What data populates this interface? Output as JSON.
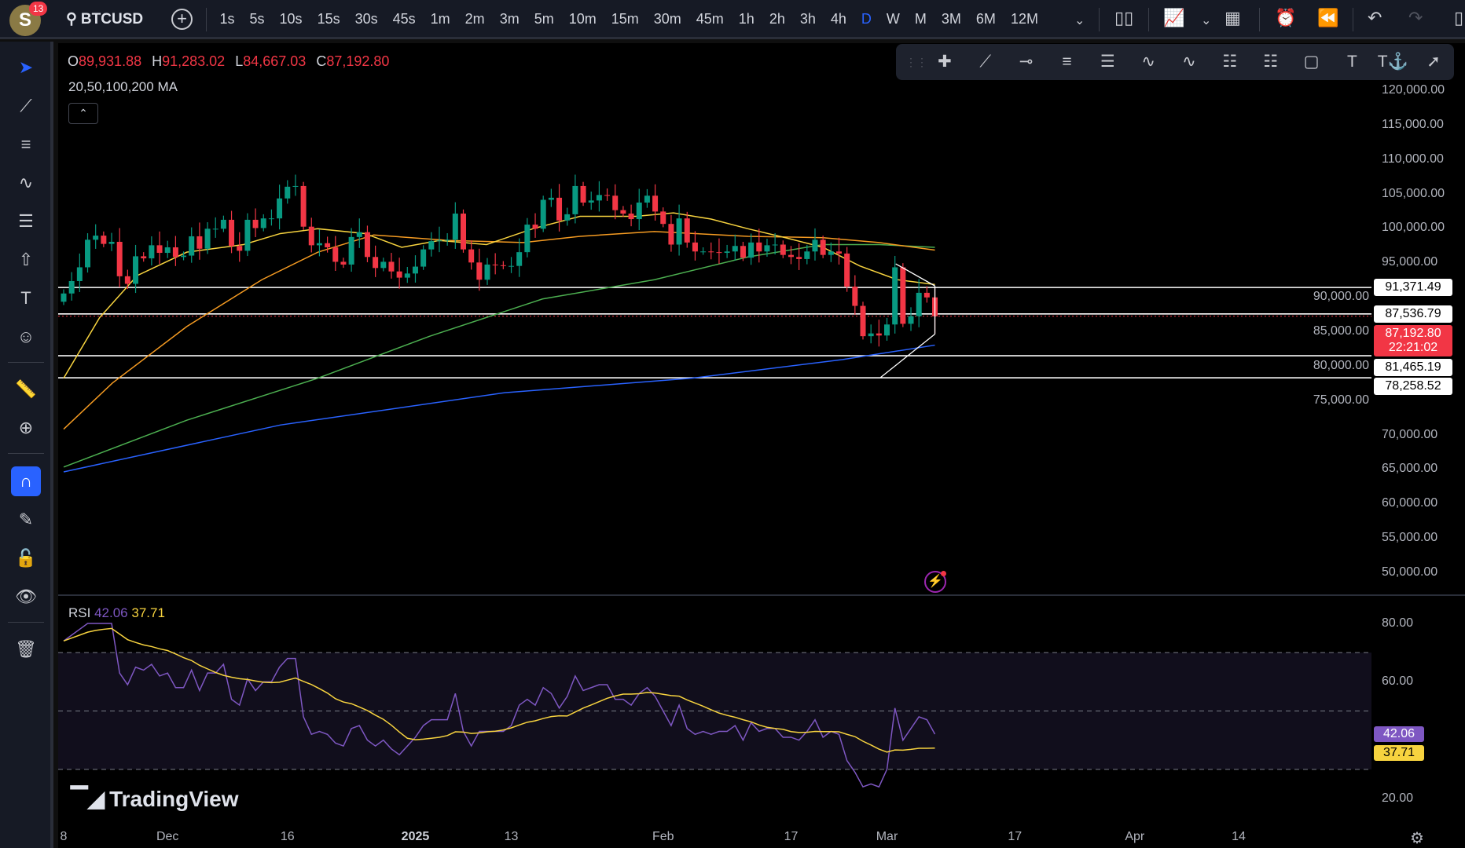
{
  "header": {
    "avatar_letter": "S",
    "notifications": "13",
    "symbol": "BTCUSD",
    "intervals": [
      "1s",
      "5s",
      "10s",
      "15s",
      "30s",
      "45s",
      "1m",
      "2m",
      "3m",
      "5m",
      "10m",
      "15m",
      "30m",
      "45m",
      "1h",
      "2h",
      "3h",
      "4h",
      "D",
      "W",
      "M",
      "3M",
      "6M",
      "12M"
    ],
    "active_interval": "D"
  },
  "legend": {
    "o_label": "O",
    "o": "89,931.88",
    "h_label": "H",
    "h": "91,283.02",
    "l_label": "L",
    "l": "84,667.03",
    "c_label": "C",
    "c": "87,192.80",
    "ma_label": "20,50,100,200 MA"
  },
  "price_axis": [
    "120,000.00",
    "115,000.00",
    "110,000.00",
    "105,000.00",
    "100,000.00",
    "95,000.00",
    "90,000.00",
    "85,000.00",
    "80,000.00",
    "75,000.00",
    "70,000.00",
    "65,000.00",
    "60,000.00",
    "55,000.00",
    "50,000.00"
  ],
  "price_axis_values": [
    120000,
    115000,
    110000,
    105000,
    100000,
    95000,
    90000,
    85000,
    80000,
    75000,
    70000,
    65000,
    60000,
    55000,
    50000
  ],
  "levels": [
    {
      "label": "91,371.49",
      "price": 91371.49
    },
    {
      "label": "87,536.79",
      "price": 87536.79
    },
    {
      "label": "81,465.19",
      "price": 81465.19
    },
    {
      "label": "78,258.52",
      "price": 78258.52
    }
  ],
  "current": {
    "price_label": "87,192.80",
    "price": 87192.8,
    "countdown": "22:21:02"
  },
  "rsi": {
    "label": "RSI",
    "value": "42.06",
    "ma": "37.71",
    "axis": [
      "80.00",
      "60.00",
      "20.00"
    ],
    "axis_values": [
      80,
      60,
      20
    ],
    "color": "#7e57c2",
    "ma_color": "#f7d33f"
  },
  "time_axis": [
    {
      "t": "8",
      "d": 0
    },
    {
      "t": "Dec",
      "d": 13
    },
    {
      "t": "16",
      "d": 28
    },
    {
      "t": "2025",
      "d": 44,
      "bold": true
    },
    {
      "t": "13",
      "d": 56
    },
    {
      "t": "Feb",
      "d": 75
    },
    {
      "t": "17",
      "d": 91
    },
    {
      "t": "Mar",
      "d": 103
    },
    {
      "t": "17",
      "d": 119
    },
    {
      "t": "Apr",
      "d": 134
    },
    {
      "t": "14",
      "d": 147
    }
  ],
  "branding": "TradingView",
  "colors": {
    "up": "#089981",
    "down": "#f23645",
    "accent": "#2962ff",
    "ma20": "#f7d33f",
    "ma50": "#f59b22",
    "ma100": "#4caf50",
    "ma200": "#2962ff"
  },
  "chart_data": {
    "type": "candlestick",
    "start": "Nov 18",
    "interval": "1D",
    "closes": [
      90.5,
      92.3,
      94.3,
      98.3,
      98.9,
      97.7,
      98.0,
      93.0,
      91.9,
      95.9,
      95.6,
      97.5,
      96.4,
      97.2,
      95.8,
      96.0,
      98.8,
      97.0,
      99.9,
      99.9,
      101.2,
      97.4,
      96.7,
      101.2,
      100.0,
      101.4,
      101.4,
      104.3,
      106.0,
      106.1,
      100.2,
      97.5,
      97.8,
      97.2,
      95.1,
      94.7,
      98.7,
      99.4,
      95.8,
      94.2,
      95.1,
      93.7,
      92.8,
      93.4,
      94.4,
      96.9,
      98.1,
      98.2,
      98.3,
      102.1,
      96.9,
      95.0,
      92.5,
      94.7,
      94.6,
      94.5,
      94.5,
      96.5,
      100.5,
      99.9,
      104.1,
      104.4,
      101.1,
      102.0,
      106.1,
      103.7,
      104.0,
      104.8,
      104.7,
      102.6,
      102.1,
      101.3,
      103.7,
      104.7,
      102.4,
      100.6,
      97.6,
      101.4,
      97.9,
      96.6,
      96.6,
      96.5,
      96.4,
      96.6,
      97.4,
      95.7,
      97.9,
      96.6,
      97.5,
      97.6,
      96.1,
      95.8,
      95.5,
      96.6,
      98.3,
      96.1,
      96.6,
      96.3,
      91.5,
      88.7,
      84.3,
      84.7,
      84.4,
      86.0,
      94.3,
      86.1,
      87.2,
      90.6,
      89.93,
      87.19
    ],
    "price_unit": "thousand USD",
    "ma": {
      "ma20": [
        [
          0,
          78.2
        ],
        [
          4.5,
          87
        ],
        [
          9.2,
          93.1
        ],
        [
          15.4,
          96.5
        ],
        [
          22.5,
          97.6
        ],
        [
          27.1,
          99.2
        ],
        [
          31.8,
          99.9
        ],
        [
          37.7,
          99.2
        ],
        [
          42.3,
          97.2
        ],
        [
          47,
          98.2
        ],
        [
          52.9,
          97.6
        ],
        [
          58.7,
          99.9
        ],
        [
          64.6,
          101.7
        ],
        [
          71.6,
          101.7
        ],
        [
          76.3,
          102.2
        ],
        [
          81,
          101.3
        ],
        [
          85.6,
          99.9
        ],
        [
          90.3,
          98.6
        ],
        [
          95,
          97.2
        ],
        [
          99.6,
          94.5
        ],
        [
          104.3,
          92.5
        ],
        [
          109,
          91.8
        ]
      ],
      "ma50": [
        [
          0,
          70.8
        ],
        [
          6.1,
          77.5
        ],
        [
          15.4,
          85.7
        ],
        [
          24.8,
          92.5
        ],
        [
          31.8,
          96.5
        ],
        [
          38.8,
          99
        ],
        [
          48.2,
          98.2
        ],
        [
          57.5,
          97.9
        ],
        [
          64.6,
          98.8
        ],
        [
          73.9,
          99.5
        ],
        [
          85.6,
          98.8
        ],
        [
          95,
          98.6
        ],
        [
          102,
          97.9
        ],
        [
          109,
          96.8
        ]
      ],
      "ma100": [
        [
          0,
          65.3
        ],
        [
          15.4,
          72.1
        ],
        [
          31.8,
          78.2
        ],
        [
          45.8,
          84.3
        ],
        [
          59.9,
          89.7
        ],
        [
          73.9,
          92.5
        ],
        [
          85.6,
          95.8
        ],
        [
          95,
          97.6
        ],
        [
          102,
          97.6
        ],
        [
          109,
          97.2
        ]
      ],
      "ma200": [
        [
          0,
          64.6
        ],
        [
          27.1,
          71.4
        ],
        [
          55.2,
          76.1
        ],
        [
          78.6,
          78.2
        ],
        [
          97.4,
          80.9
        ],
        [
          109,
          83
        ]
      ]
    },
    "drawings": [
      [
        [
          104.1,
          94.8
        ],
        [
          109,
          91.6
        ]
      ],
      [
        [
          102.2,
          78.3
        ],
        [
          109,
          84.6
        ]
      ],
      [
        [
          109,
          91.6
        ],
        [
          109,
          84.6
        ]
      ]
    ],
    "rsi_values": [
      74,
      76,
      78,
      80,
      80,
      80,
      80,
      63,
      59,
      65,
      64,
      66,
      62,
      63,
      58,
      58,
      64,
      57,
      63,
      63,
      66,
      54,
      52,
      61,
      57,
      60,
      60,
      65,
      68,
      68,
      48,
      42,
      43,
      42,
      39,
      38,
      44,
      45,
      40,
      38,
      40,
      37,
      35,
      38,
      41,
      45,
      47,
      47,
      47,
      56,
      43,
      38,
      43,
      43,
      43,
      43,
      45,
      52,
      54,
      52,
      58,
      56,
      51,
      55,
      62,
      57,
      58,
      59,
      59,
      54,
      54,
      52,
      56,
      58,
      55,
      50,
      45,
      52,
      44,
      42,
      43,
      42,
      43,
      43,
      45,
      40,
      46,
      43,
      44,
      44,
      41,
      41,
      40,
      43,
      47,
      41,
      43,
      42,
      33,
      29,
      24,
      25,
      24,
      30,
      51,
      40,
      44,
      48,
      47,
      42.06
    ],
    "rsi_bands": [
      70,
      50,
      30
    ]
  }
}
